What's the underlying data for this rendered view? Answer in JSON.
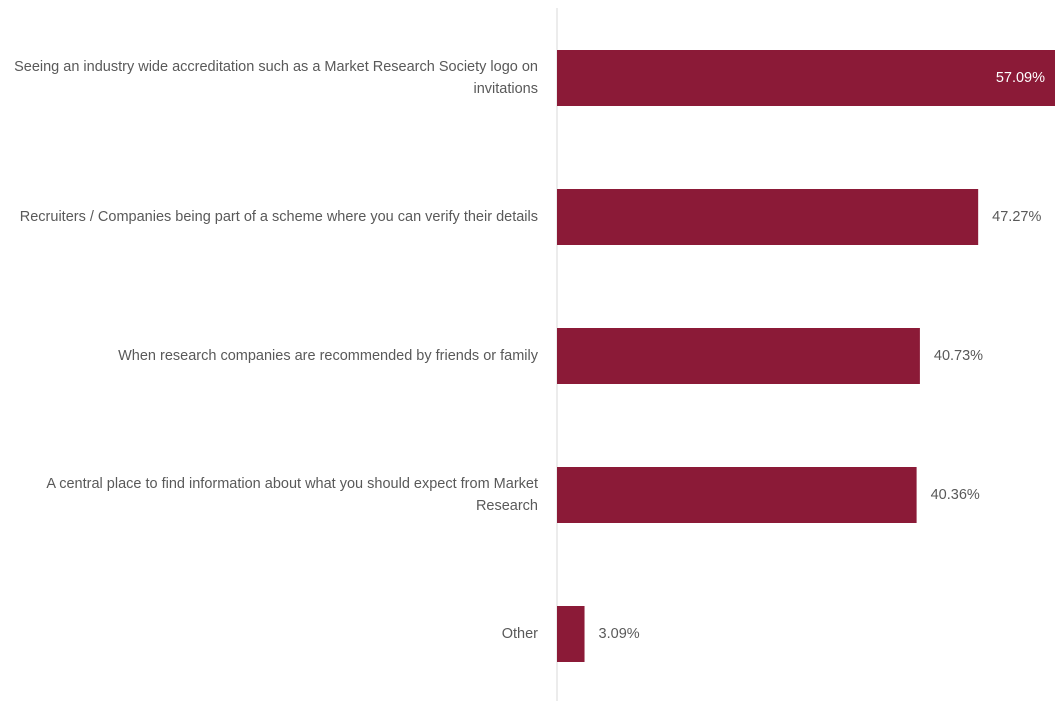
{
  "chart_data": {
    "type": "bar",
    "orientation": "horizontal",
    "categories": [
      "Seeing an industry wide accreditation such as a Market Research Society logo on invitations",
      "Recruiters / Companies being part of a scheme where you can verify their details",
      "When research companies are recommended by friends or family",
      "A central place to find information about what you should expect from Market Research",
      "Other"
    ],
    "values": [
      57.09,
      47.27,
      40.73,
      40.36,
      3.09
    ],
    "value_labels": [
      "57.09%",
      "47.27%",
      "40.73%",
      "40.36%",
      "3.09%"
    ],
    "color": "#8b1a37"
  }
}
